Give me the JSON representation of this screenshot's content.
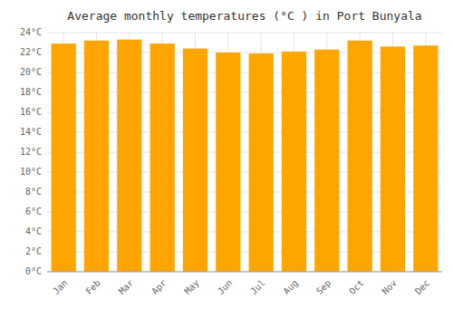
{
  "chart_data": {
    "type": "bar",
    "title": "Average monthly temperatures (°C ) in Port Bunyala",
    "categories": [
      "Jan",
      "Feb",
      "Mar",
      "Apr",
      "May",
      "Jun",
      "Jul",
      "Aug",
      "Sep",
      "Oct",
      "Nov",
      "Dec"
    ],
    "values": [
      22.9,
      23.2,
      23.3,
      22.9,
      22.4,
      22.0,
      21.9,
      22.1,
      22.3,
      23.2,
      22.6,
      22.7
    ],
    "color": "#FFA500",
    "ylim": [
      0,
      24
    ],
    "yticks": [
      {
        "value": 0,
        "label": "0°C"
      },
      {
        "value": 2,
        "label": "2°C"
      },
      {
        "value": 4,
        "label": "4°C"
      },
      {
        "value": 6,
        "label": "6°C"
      },
      {
        "value": 8,
        "label": "8°C"
      },
      {
        "value": 10,
        "label": "10°C"
      },
      {
        "value": 12,
        "label": "12°C"
      },
      {
        "value": 14,
        "label": "14°C"
      },
      {
        "value": 16,
        "label": "16°C"
      },
      {
        "value": 18,
        "label": "18°C"
      },
      {
        "value": 20,
        "label": "20°C"
      },
      {
        "value": 22,
        "label": "22°C"
      },
      {
        "value": 24,
        "label": "24°C"
      }
    ],
    "grid": true
  }
}
